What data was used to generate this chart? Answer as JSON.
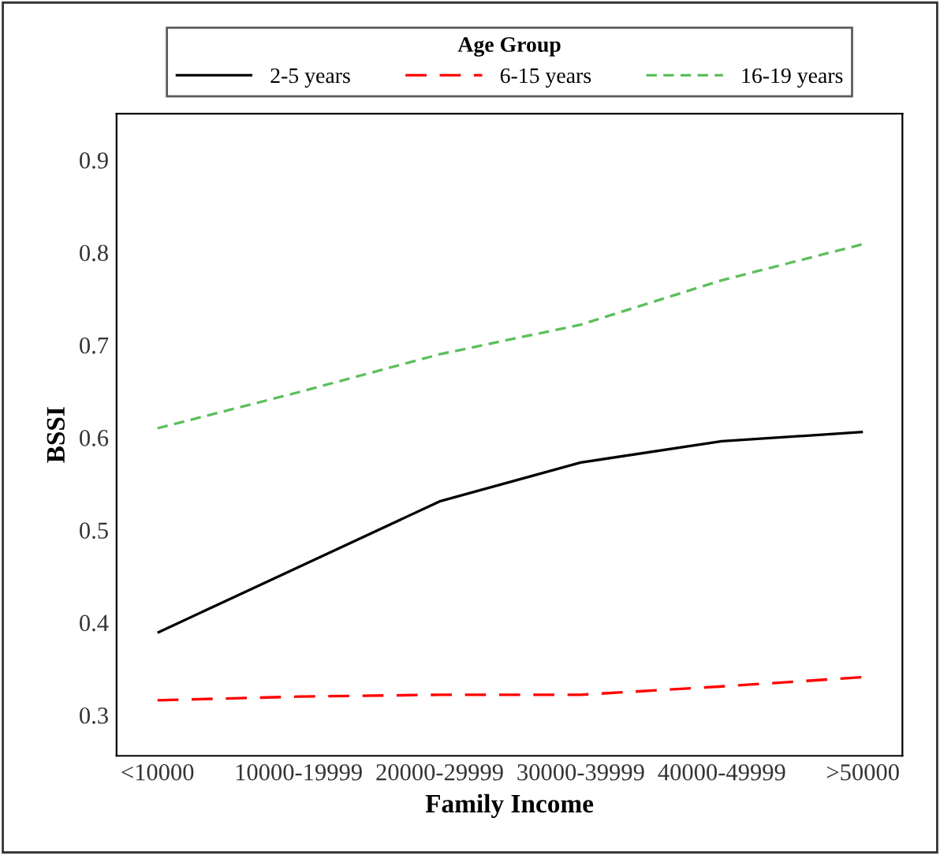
{
  "chart_data": {
    "type": "line",
    "xlabel": "Family Income",
    "ylabel": "BSSI",
    "legend_title": "Age Group",
    "categories": [
      "<10000",
      "10000-19999",
      "20000-29999",
      "30000-39999",
      "40000-49999",
      ">50000"
    ],
    "series": [
      {
        "name": "2-5 years",
        "color": "#000000",
        "line_style": "solid",
        "values": [
          0.389,
          0.46,
          0.531,
          0.573,
          0.596,
          0.606
        ]
      },
      {
        "name": "6-15 years",
        "color": "#ff0000",
        "line_style": "dashed",
        "values": [
          0.316,
          0.32,
          0.322,
          0.322,
          0.331,
          0.341
        ]
      },
      {
        "name": "16-19 years",
        "color": "#5cbf5c",
        "line_style": "dotted",
        "values": [
          0.61,
          0.649,
          0.69,
          0.722,
          0.77,
          0.809
        ]
      }
    ],
    "ylim": [
      0.256,
      0.95
    ],
    "yticks": [
      0.3,
      0.4,
      0.5,
      0.6,
      0.7,
      0.8,
      0.9
    ],
    "grid": false,
    "legend": "top",
    "marker": "none"
  }
}
